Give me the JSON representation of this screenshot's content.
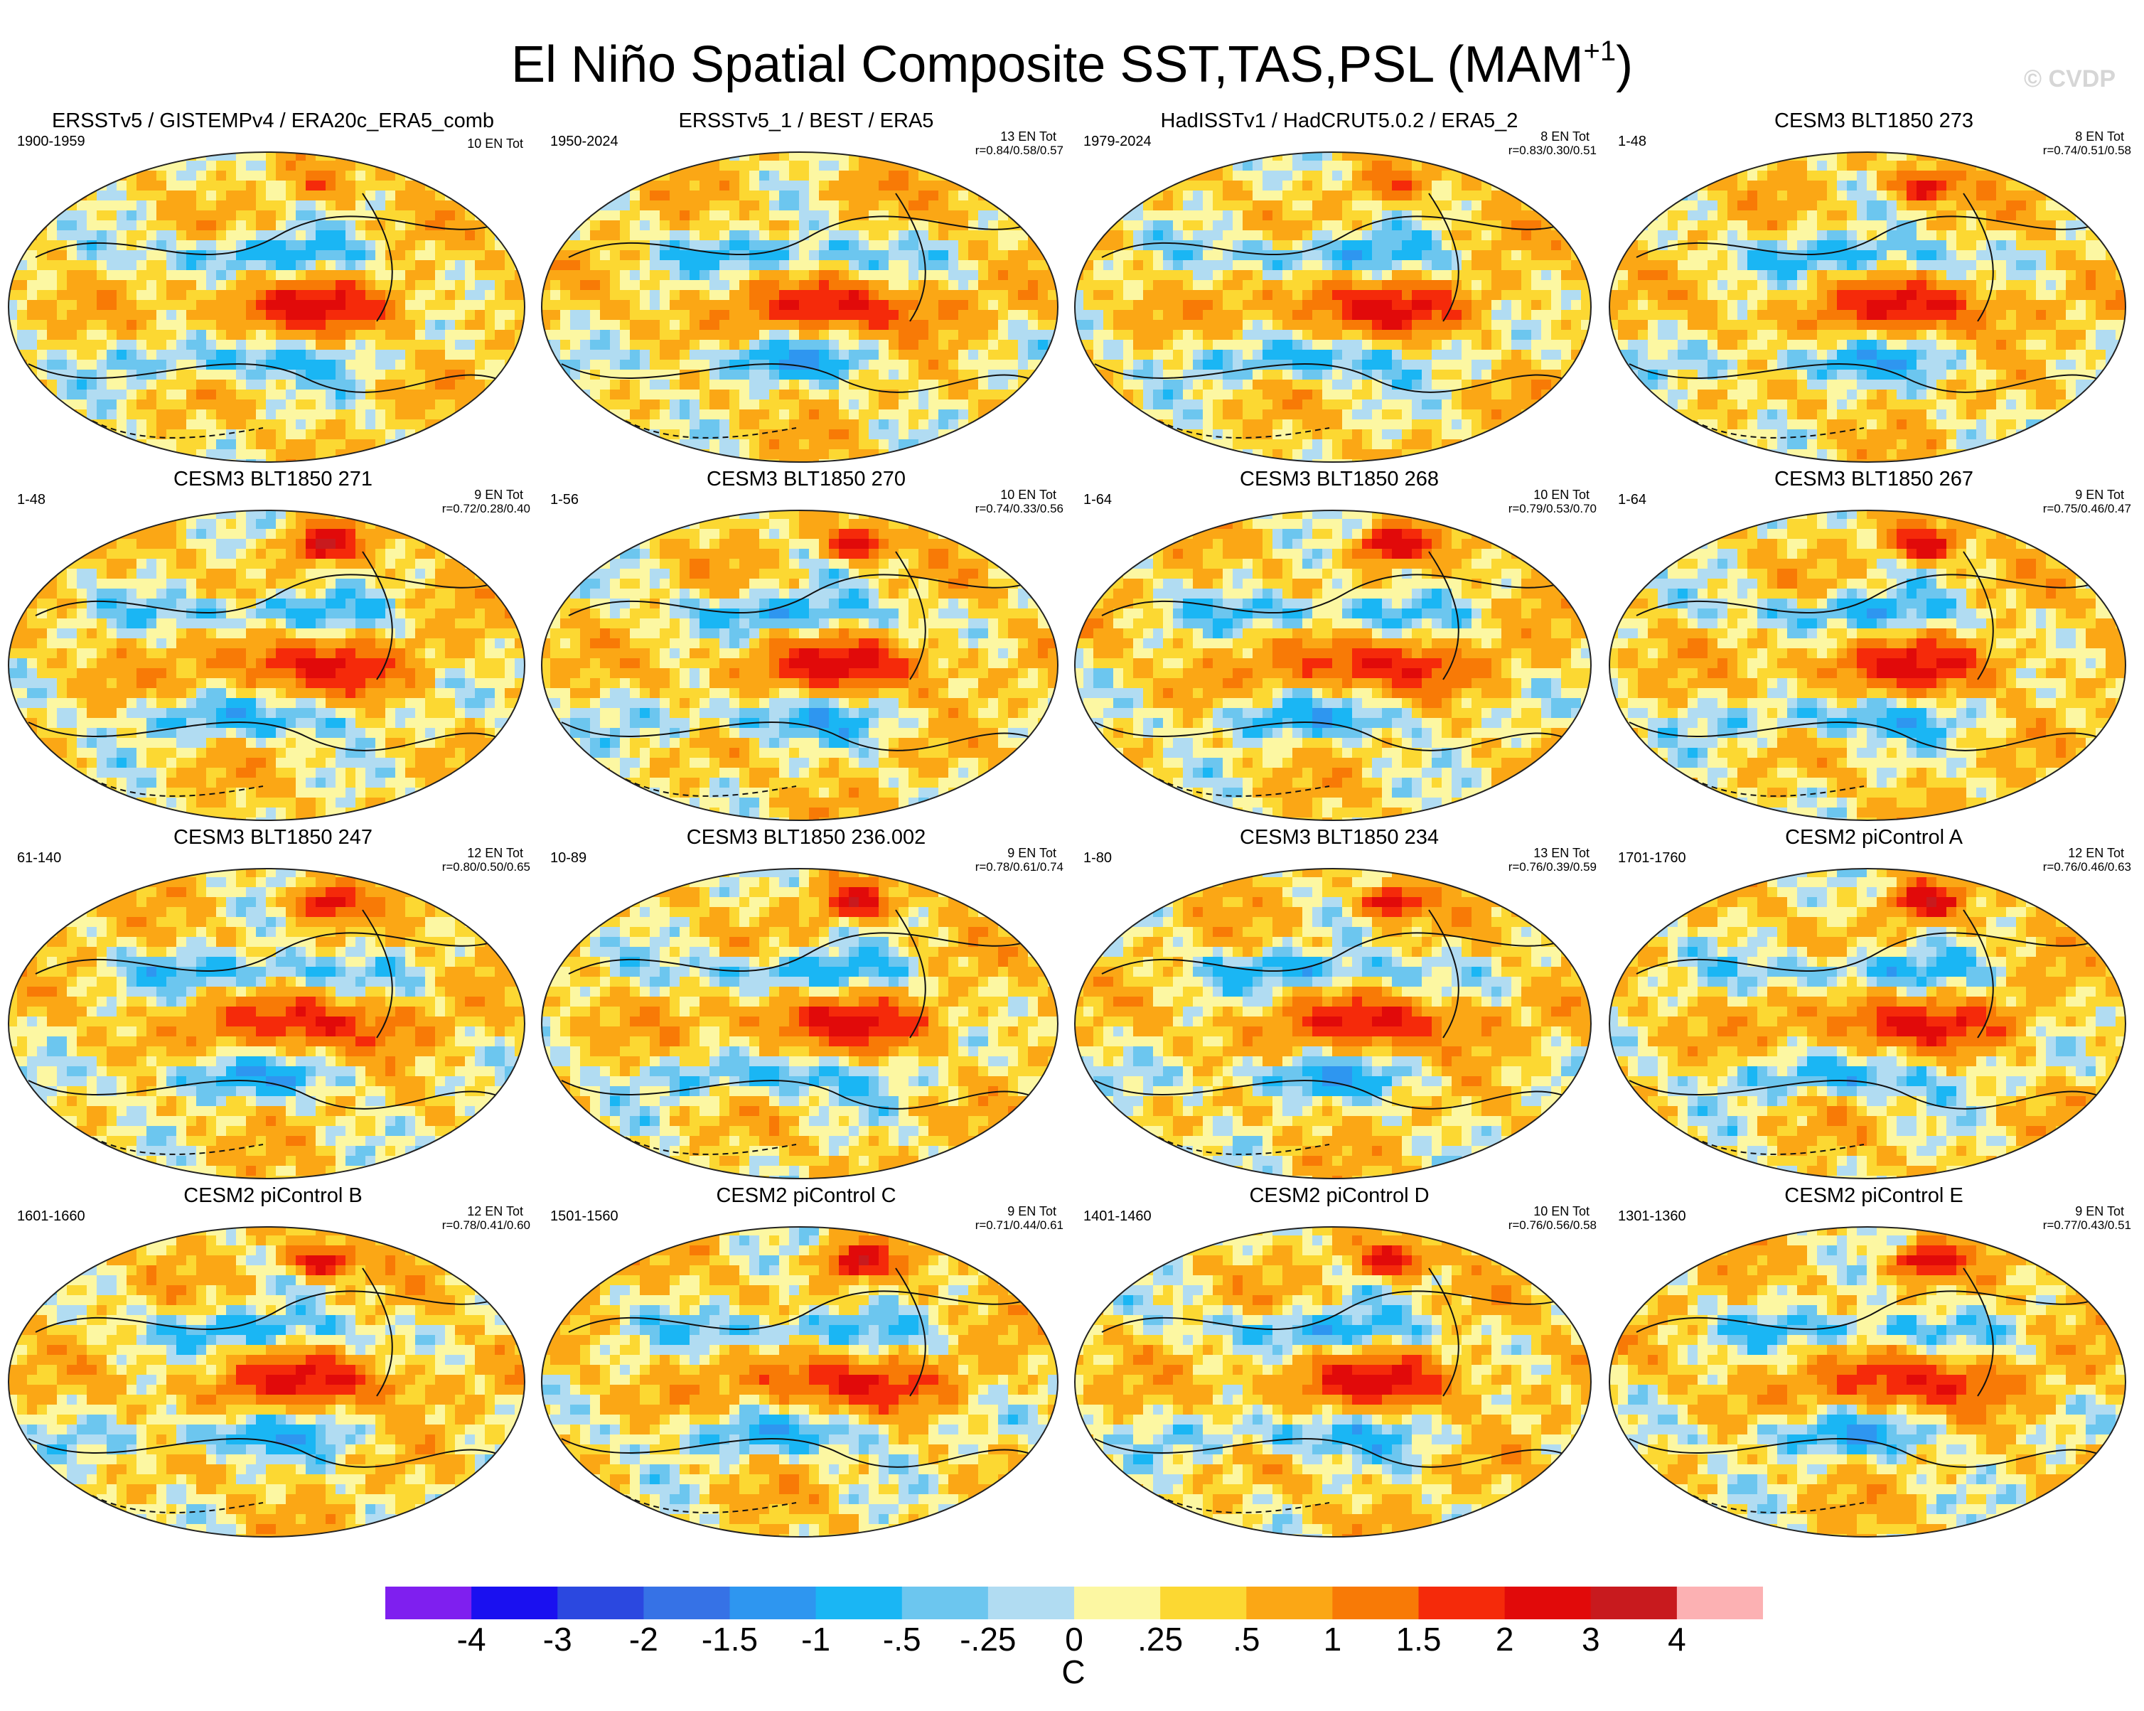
{
  "figure": {
    "title_main": "El Niño Spatial Composite SST,TAS,PSL (MAM",
    "title_sup": "+1",
    "title_close": ")",
    "watermark": "© CVDP"
  },
  "chart_data": {
    "type": "heatmap",
    "description_variables": [
      "SST",
      "TAS",
      "PSL"
    ],
    "season": "MAM+1",
    "colorbar": {
      "units": "C",
      "levels": [
        "-4",
        "-3",
        "-2",
        "-1.5",
        "-1",
        "-.5",
        "-.25",
        "0",
        ".25",
        ".5",
        "1",
        "1.5",
        "2",
        "3",
        "4"
      ],
      "level_values": [
        -4,
        -3,
        -2,
        -1.5,
        -1,
        -0.5,
        -0.25,
        0,
        0.25,
        0.5,
        1,
        1.5,
        2,
        3,
        4
      ],
      "colors": [
        "#7f1fef",
        "#1a10f0",
        "#2b48e0",
        "#3672e6",
        "#2e96f0",
        "#1ab6f4",
        "#6cc6ef",
        "#b1dcf2",
        "#fcf7a2",
        "#fcd832",
        "#fba715",
        "#f87a06",
        "#f52a0a",
        "#e10a0a",
        "#c81a1e",
        "#fcb1b3"
      ]
    },
    "panels": [
      {
        "title": "ERSSTv5 / GISTEMPv4 / ERA20c_ERA5_comb",
        "years": "1900-1959",
        "count": "10 EN Tot",
        "corr": ""
      },
      {
        "title": "ERSSTv5_1 / BEST / ERA5",
        "years": "1950-2024",
        "count": "13 EN Tot",
        "corr": "r=0.84/0.58/0.57"
      },
      {
        "title": "HadISSTv1 / HadCRUT5.0.2 / ERA5_2",
        "years": "1979-2024",
        "count": "8 EN Tot",
        "corr": "r=0.83/0.30/0.51"
      },
      {
        "title": "CESM3 BLT1850 273",
        "years": "1-48",
        "count": "8 EN Tot",
        "corr": "r=0.74/0.51/0.58"
      },
      {
        "title": "CESM3 BLT1850 271",
        "years": "1-48",
        "count": "9 EN Tot",
        "corr": "r=0.72/0.28/0.40"
      },
      {
        "title": "CESM3 BLT1850 270",
        "years": "1-56",
        "count": "10 EN Tot",
        "corr": "r=0.74/0.33/0.56"
      },
      {
        "title": "CESM3 BLT1850 268",
        "years": "1-64",
        "count": "10 EN Tot",
        "corr": "r=0.79/0.53/0.70"
      },
      {
        "title": "CESM3 BLT1850 267",
        "years": "1-64",
        "count": "9 EN Tot",
        "corr": "r=0.75/0.46/0.47"
      },
      {
        "title": "CESM3 BLT1850 247",
        "years": "61-140",
        "count": "12 EN Tot",
        "corr": "r=0.80/0.50/0.65"
      },
      {
        "title": "CESM3 BLT1850 236.002",
        "years": "10-89",
        "count": "9 EN Tot",
        "corr": "r=0.78/0.61/0.74"
      },
      {
        "title": "CESM3 BLT1850 234",
        "years": "1-80",
        "count": "13 EN Tot",
        "corr": "r=0.76/0.39/0.59"
      },
      {
        "title": "CESM2 piControl A",
        "years": "1701-1760",
        "count": "12 EN Tot",
        "corr": "r=0.76/0.46/0.63"
      },
      {
        "title": "CESM2 piControl B",
        "years": "1601-1660",
        "count": "12 EN Tot",
        "corr": "r=0.78/0.41/0.60"
      },
      {
        "title": "CESM2 piControl C",
        "years": "1501-1560",
        "count": "9 EN Tot",
        "corr": "r=0.71/0.44/0.61"
      },
      {
        "title": "CESM2 piControl D",
        "years": "1401-1460",
        "count": "10 EN Tot",
        "corr": "r=0.76/0.56/0.58"
      },
      {
        "title": "CESM2 piControl E",
        "years": "1301-1360",
        "count": "9 EN Tot",
        "corr": "r=0.77/0.43/0.51"
      }
    ]
  }
}
